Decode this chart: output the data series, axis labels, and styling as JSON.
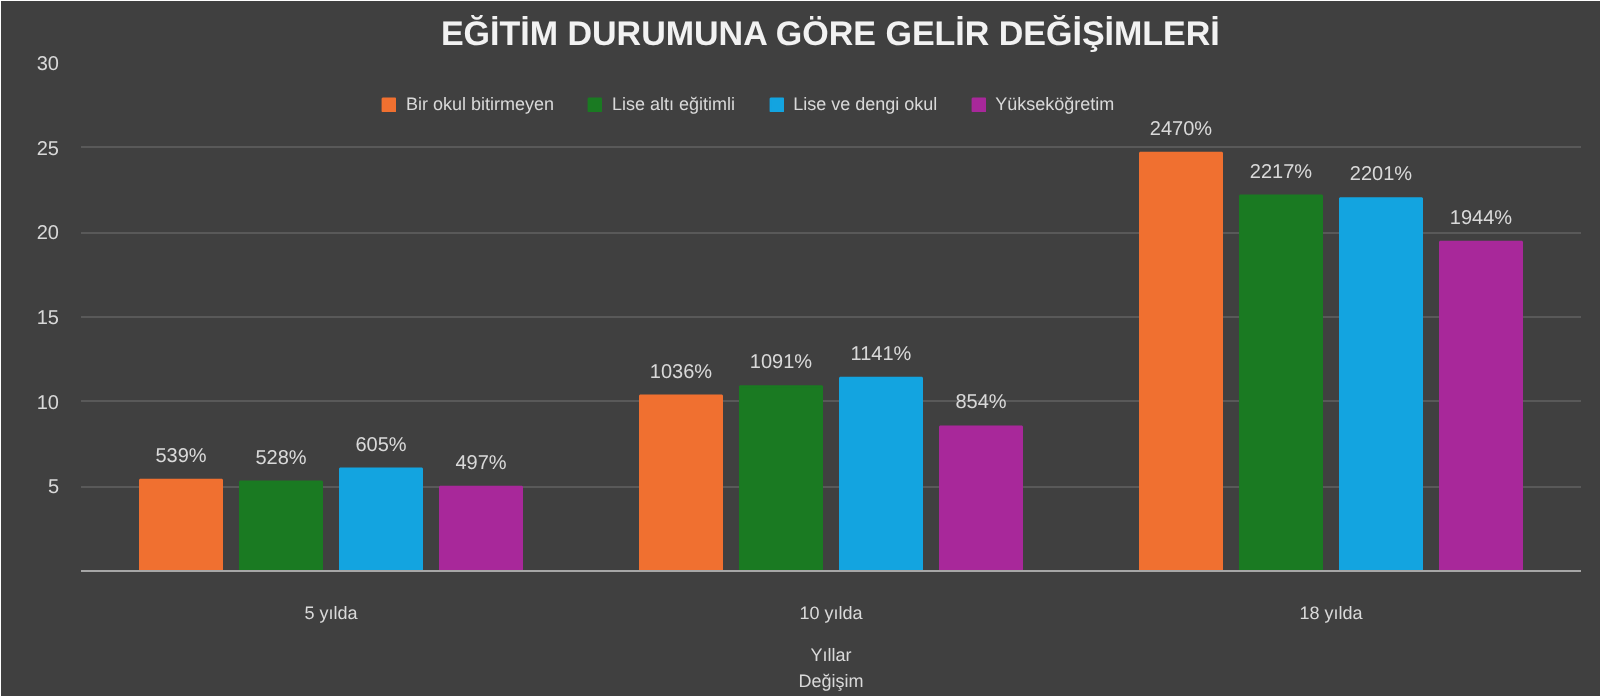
{
  "chart_data": {
    "type": "bar",
    "title": "EĞİTİM DURUMUNA GÖRE GELİR DEĞİŞİMLERİ",
    "xlabel": "Yıllar",
    "annotations": [
      "Değişim"
    ],
    "categories": [
      "5 yılda",
      "10 yılda",
      "18 yılda"
    ],
    "series": [
      {
        "name": "Bir okul bitirmeyen",
        "color": "#f07030",
        "values": [
          5.39,
          10.36,
          24.7
        ],
        "value_labels": [
          "539%",
          "1036%",
          "2470%"
        ]
      },
      {
        "name": "Lise altı eğitimli",
        "color": "#1a7a22",
        "values": [
          5.28,
          10.91,
          22.17
        ],
        "value_labels": [
          "528%",
          "1091%",
          "2217%"
        ]
      },
      {
        "name": "Lise ve dengi okul",
        "color": "#13a4e0",
        "values": [
          6.05,
          11.41,
          22.01
        ],
        "value_labels": [
          "605%",
          "1141%",
          "2201%"
        ]
      },
      {
        "name": "Yükseköğretim",
        "color": "#a8289a",
        "values": [
          4.97,
          8.54,
          19.44
        ],
        "value_labels": [
          "497%",
          "854%",
          "1944%"
        ]
      }
    ],
    "ylim": [
      0,
      30
    ],
    "yticks": [
      5,
      10,
      15,
      20,
      25,
      30
    ],
    "grid": "y",
    "legend": "top"
  }
}
